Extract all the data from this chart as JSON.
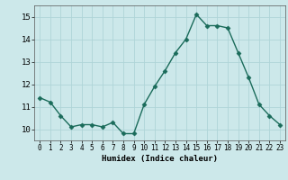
{
  "x": [
    0,
    1,
    2,
    3,
    4,
    5,
    6,
    7,
    8,
    9,
    10,
    11,
    12,
    13,
    14,
    15,
    16,
    17,
    18,
    19,
    20,
    21,
    22,
    23
  ],
  "y": [
    11.4,
    11.2,
    10.6,
    10.1,
    10.2,
    10.2,
    10.1,
    10.3,
    9.8,
    9.8,
    11.1,
    11.9,
    12.6,
    13.4,
    14.0,
    15.1,
    14.6,
    14.6,
    14.5,
    13.4,
    12.3,
    11.1,
    10.6,
    10.2
  ],
  "xlabel": "Humidex (Indice chaleur)",
  "xlim_min": -0.5,
  "xlim_max": 23.5,
  "ylim_min": 9.5,
  "ylim_max": 15.5,
  "yticks": [
    10,
    11,
    12,
    13,
    14,
    15
  ],
  "xticks": [
    0,
    1,
    2,
    3,
    4,
    5,
    6,
    7,
    8,
    9,
    10,
    11,
    12,
    13,
    14,
    15,
    16,
    17,
    18,
    19,
    20,
    21,
    22,
    23
  ],
  "xtick_labels": [
    "0",
    "1",
    "2",
    "3",
    "4",
    "5",
    "6",
    "7",
    "8",
    "9",
    "10",
    "11",
    "12",
    "13",
    "14",
    "15",
    "16",
    "17",
    "18",
    "19",
    "20",
    "21",
    "22",
    "23"
  ],
  "line_color": "#1a6b5a",
  "marker": "D",
  "marker_size": 2.5,
  "line_width": 1.0,
  "bg_color": "#cce8ea",
  "grid_color": "#afd4d7",
  "fig_bg": "#cce8ea",
  "tick_fontsize": 5.5,
  "xlabel_fontsize": 6.5,
  "ylabel_fontsize": 6.5
}
